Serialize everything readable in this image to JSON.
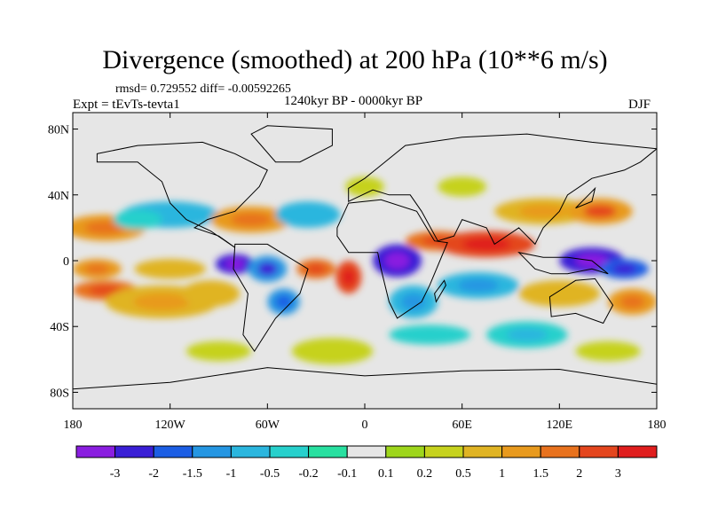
{
  "title": "Divergence (smoothed) at 200 hPa (10**6 m/s)",
  "stats_text": "rmsd= 0.729552 diff= -0.00592265",
  "experiment_text": "Expt = tEvTs-tevta1",
  "period_text": "1240kyr BP - 0000kyr BP",
  "season_text": "DJF",
  "map": {
    "lon_range": [
      -180,
      180
    ],
    "lat_range": [
      -90,
      90
    ],
    "lon_ticks": [
      {
        "value": -180,
        "label": "180"
      },
      {
        "value": -120,
        "label": "120W"
      },
      {
        "value": -60,
        "label": "60W"
      },
      {
        "value": 0,
        "label": "0"
      },
      {
        "value": 60,
        "label": "60E"
      },
      {
        "value": 120,
        "label": "120E"
      },
      {
        "value": 180,
        "label": "180"
      }
    ],
    "lat_ticks": [
      {
        "value": 80,
        "label": "80N"
      },
      {
        "value": 40,
        "label": "40N"
      },
      {
        "value": 0,
        "label": "0"
      },
      {
        "value": -40,
        "label": "40S"
      },
      {
        "value": -80,
        "label": "80S"
      }
    ],
    "background_color": "#e6e6e6"
  },
  "colorbar": {
    "colors": [
      "#8a1ee0",
      "#3a1fd6",
      "#1c5ee4",
      "#2596e2",
      "#2bb6de",
      "#27d0cc",
      "#28e0a0",
      "#e6e6e6",
      "#9ed61c",
      "#c6d21e",
      "#e0b424",
      "#e89a1e",
      "#e8721e",
      "#e4461e",
      "#e01e1e"
    ],
    "labels": [
      "-3",
      "-2",
      "-1.5",
      "-1",
      "-0.5",
      "-0.2",
      "-0.1",
      "0.1",
      "0.2",
      "0.5",
      "1",
      "1.5",
      "2",
      "3"
    ]
  },
  "anomalies": [
    {
      "lon": -160,
      "lat": 20,
      "rx": 25,
      "ry": 8,
      "level": 1.2
    },
    {
      "lon": -120,
      "lat": 28,
      "rx": 30,
      "ry": 8,
      "level": -0.6
    },
    {
      "lon": -140,
      "lat": 25,
      "rx": 15,
      "ry": 6,
      "level": -0.3
    },
    {
      "lon": -165,
      "lat": -5,
      "rx": 15,
      "ry": 6,
      "level": 1.0
    },
    {
      "lon": -160,
      "lat": -18,
      "rx": 20,
      "ry": 6,
      "level": 1.6
    },
    {
      "lon": -120,
      "lat": -5,
      "rx": 22,
      "ry": 6,
      "level": 0.6
    },
    {
      "lon": -125,
      "lat": -25,
      "rx": 35,
      "ry": 10,
      "level": 0.8
    },
    {
      "lon": -95,
      "lat": -20,
      "rx": 18,
      "ry": 8,
      "level": 0.5
    },
    {
      "lon": -80,
      "lat": -2,
      "rx": 12,
      "ry": 6,
      "level": -2.5
    },
    {
      "lon": -60,
      "lat": -5,
      "rx": 12,
      "ry": 8,
      "level": -1.5
    },
    {
      "lon": -50,
      "lat": -25,
      "rx": 10,
      "ry": 8,
      "level": -1.2
    },
    {
      "lon": -70,
      "lat": 25,
      "rx": 25,
      "ry": 8,
      "level": 1.2
    },
    {
      "lon": -35,
      "lat": 28,
      "rx": 20,
      "ry": 8,
      "level": -0.6
    },
    {
      "lon": -30,
      "lat": -5,
      "rx": 12,
      "ry": 6,
      "level": 1.5
    },
    {
      "lon": -10,
      "lat": -10,
      "rx": 8,
      "ry": 10,
      "level": 2.2
    },
    {
      "lon": 20,
      "lat": 0,
      "rx": 15,
      "ry": 10,
      "level": -2.6
    },
    {
      "lon": 30,
      "lat": -25,
      "rx": 15,
      "ry": 10,
      "level": -1.0
    },
    {
      "lon": 45,
      "lat": 12,
      "rx": 20,
      "ry": 6,
      "level": 1.5
    },
    {
      "lon": 75,
      "lat": 10,
      "rx": 30,
      "ry": 8,
      "level": 2.0
    },
    {
      "lon": 70,
      "lat": -15,
      "rx": 25,
      "ry": 8,
      "level": -0.8
    },
    {
      "lon": 110,
      "lat": 30,
      "rx": 30,
      "ry": 8,
      "level": 0.8
    },
    {
      "lon": 145,
      "lat": 30,
      "rx": 20,
      "ry": 8,
      "level": 1.4
    },
    {
      "lon": 140,
      "lat": 0,
      "rx": 20,
      "ry": 8,
      "level": -2.4
    },
    {
      "lon": 160,
      "lat": -5,
      "rx": 15,
      "ry": 6,
      "level": -1.8
    },
    {
      "lon": 120,
      "lat": -20,
      "rx": 25,
      "ry": 8,
      "level": 0.6
    },
    {
      "lon": 165,
      "lat": -25,
      "rx": 15,
      "ry": 8,
      "level": 1.0
    },
    {
      "lon": 0,
      "lat": 45,
      "rx": 12,
      "ry": 6,
      "level": 0.3
    },
    {
      "lon": 60,
      "lat": 45,
      "rx": 15,
      "ry": 6,
      "level": 0.3
    },
    {
      "lon": -20,
      "lat": -55,
      "rx": 25,
      "ry": 8,
      "level": 0.2
    },
    {
      "lon": 40,
      "lat": -45,
      "rx": 25,
      "ry": 6,
      "level": -0.3
    },
    {
      "lon": -90,
      "lat": -55,
      "rx": 20,
      "ry": 6,
      "level": 0.3
    },
    {
      "lon": 150,
      "lat": -55,
      "rx": 20,
      "ry": 6,
      "level": 0.3
    },
    {
      "lon": 100,
      "lat": -45,
      "rx": 25,
      "ry": 8,
      "level": -0.4
    }
  ],
  "continents": [
    {
      "name": "north-america",
      "points": [
        [
          -165,
          65
        ],
        [
          -140,
          70
        ],
        [
          -100,
          72
        ],
        [
          -80,
          65
        ],
        [
          -60,
          55
        ],
        [
          -65,
          45
        ],
        [
          -80,
          30
        ],
        [
          -97,
          25
        ],
        [
          -105,
          20
        ],
        [
          -90,
          15
        ],
        [
          -80,
          8
        ],
        [
          -95,
          18
        ],
        [
          -110,
          25
        ],
        [
          -120,
          35
        ],
        [
          -125,
          48
        ],
        [
          -140,
          60
        ],
        [
          -165,
          60
        ]
      ]
    },
    {
      "name": "south-america",
      "points": [
        [
          -80,
          10
        ],
        [
          -60,
          10
        ],
        [
          -35,
          -5
        ],
        [
          -40,
          -20
        ],
        [
          -55,
          -35
        ],
        [
          -68,
          -55
        ],
        [
          -75,
          -45
        ],
        [
          -72,
          -20
        ],
        [
          -81,
          -5
        ]
      ]
    },
    {
      "name": "europe-asia",
      "points": [
        [
          -10,
          36
        ],
        [
          -10,
          44
        ],
        [
          0,
          50
        ],
        [
          10,
          58
        ],
        [
          25,
          70
        ],
        [
          60,
          75
        ],
        [
          100,
          77
        ],
        [
          140,
          72
        ],
        [
          180,
          68
        ],
        [
          170,
          60
        ],
        [
          160,
          55
        ],
        [
          140,
          50
        ],
        [
          125,
          40
        ],
        [
          120,
          30
        ],
        [
          110,
          20
        ],
        [
          105,
          10
        ],
        [
          100,
          15
        ],
        [
          95,
          20
        ],
        [
          80,
          10
        ],
        [
          75,
          20
        ],
        [
          60,
          25
        ],
        [
          55,
          15
        ],
        [
          45,
          12
        ],
        [
          35,
          30
        ],
        [
          28,
          40
        ],
        [
          15,
          40
        ],
        [
          5,
          43
        ],
        [
          -10,
          36
        ]
      ]
    },
    {
      "name": "africa",
      "points": [
        [
          -17,
          20
        ],
        [
          -10,
          35
        ],
        [
          10,
          37
        ],
        [
          32,
          30
        ],
        [
          43,
          12
        ],
        [
          51,
          11
        ],
        [
          40,
          -15
        ],
        [
          35,
          -25
        ],
        [
          20,
          -35
        ],
        [
          15,
          -25
        ],
        [
          10,
          -5
        ],
        [
          8,
          5
        ],
        [
          -10,
          5
        ],
        [
          -17,
          15
        ]
      ]
    },
    {
      "name": "australia",
      "points": [
        [
          114,
          -22
        ],
        [
          130,
          -12
        ],
        [
          142,
          -11
        ],
        [
          153,
          -27
        ],
        [
          147,
          -38
        ],
        [
          130,
          -32
        ],
        [
          115,
          -34
        ]
      ]
    },
    {
      "name": "greenland",
      "points": [
        [
          -55,
          60
        ],
        [
          -40,
          60
        ],
        [
          -20,
          70
        ],
        [
          -20,
          80
        ],
        [
          -60,
          82
        ],
        [
          -70,
          77
        ]
      ]
    },
    {
      "name": "antarctica",
      "points": [
        [
          -180,
          -78
        ],
        [
          -120,
          -74
        ],
        [
          -60,
          -65
        ],
        [
          0,
          -70
        ],
        [
          60,
          -67
        ],
        [
          120,
          -66
        ],
        [
          180,
          -75
        ],
        [
          180,
          -90
        ],
        [
          -180,
          -90
        ]
      ]
    },
    {
      "name": "indonesia",
      "points": [
        [
          95,
          5
        ],
        [
          105,
          -5
        ],
        [
          115,
          -8
        ],
        [
          125,
          -8
        ],
        [
          140,
          -5
        ],
        [
          150,
          -8
        ],
        [
          140,
          0
        ],
        [
          125,
          2
        ],
        [
          110,
          2
        ]
      ]
    },
    {
      "name": "madagascar",
      "points": [
        [
          44,
          -25
        ],
        [
          50,
          -15
        ],
        [
          49,
          -12
        ],
        [
          43,
          -20
        ]
      ]
    },
    {
      "name": "japan",
      "points": [
        [
          130,
          32
        ],
        [
          140,
          36
        ],
        [
          142,
          44
        ],
        [
          138,
          40
        ],
        [
          132,
          34
        ]
      ]
    }
  ]
}
